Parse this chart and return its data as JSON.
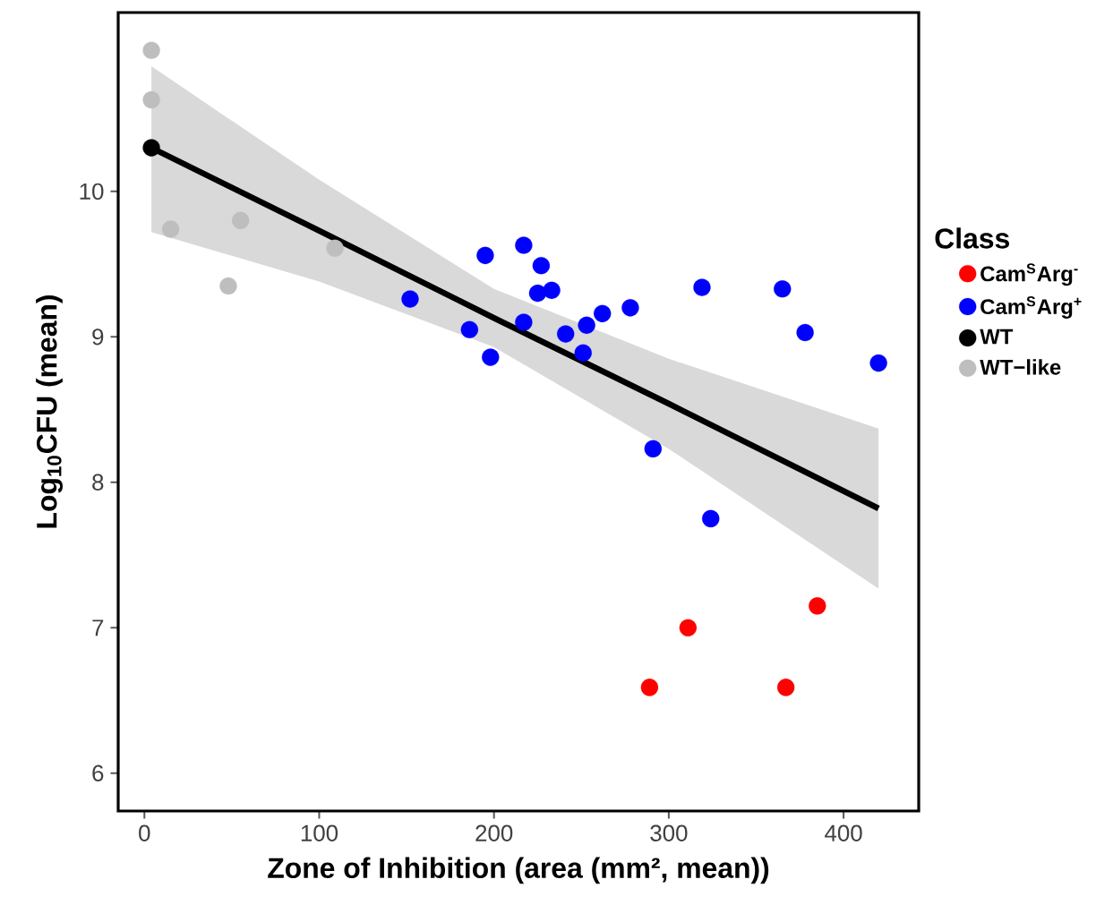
{
  "chart_data": {
    "type": "scatter",
    "xlabel": "Zone of Inhibition (area (mm², mean))",
    "ylabel": "Log$_{10}$CFU (mean)",
    "legend_title": "Class",
    "xlim": [
      -15,
      443
    ],
    "ylim": [
      5.74,
      11.23
    ],
    "xticks": [
      0,
      100,
      200,
      300,
      400
    ],
    "yticks": [
      6,
      7,
      8,
      9,
      10
    ],
    "grid": false,
    "legend": "right",
    "series": [
      {
        "name": "Cam$^{S}$Arg$^{-}$",
        "color": "#ff0000",
        "marker": "circle",
        "x": [
          289,
          311,
          385,
          367
        ],
        "values": [
          6.59,
          7.0,
          7.15,
          6.59
        ]
      },
      {
        "name": "Cam$^{S}$Arg$^{+}$",
        "color": "#0000ff",
        "marker": "circle",
        "x": [
          195,
          217,
          227,
          225,
          233,
          152,
          186,
          198,
          217,
          241,
          253,
          251,
          262,
          278,
          319,
          365,
          378,
          420,
          291,
          324
        ],
        "values": [
          9.56,
          9.63,
          9.49,
          9.3,
          9.32,
          9.26,
          9.05,
          8.86,
          9.1,
          9.02,
          9.08,
          8.89,
          9.16,
          9.2,
          9.34,
          9.33,
          9.03,
          8.82,
          8.23,
          7.75
        ]
      },
      {
        "name": "WT",
        "color": "#000000",
        "marker": "circle",
        "x": [
          4
        ],
        "values": [
          10.3
        ]
      },
      {
        "name": "WT−like",
        "color": "#bebebe",
        "marker": "circle",
        "x": [
          4,
          4,
          15,
          55,
          48,
          109
        ],
        "values": [
          10.97,
          10.63,
          9.74,
          9.8,
          9.35,
          9.61
        ]
      },
      {
        "type": "line",
        "color": "#000000",
        "marker": "none",
        "x": [
          4,
          100,
          200,
          300,
          420
        ],
        "values": [
          10.3,
          9.73,
          9.13,
          8.54,
          7.82
        ],
        "lower": [
          9.72,
          9.38,
          8.93,
          8.23,
          7.27
        ],
        "upper": [
          10.86,
          10.08,
          9.33,
          8.85,
          8.37
        ]
      }
    ]
  }
}
